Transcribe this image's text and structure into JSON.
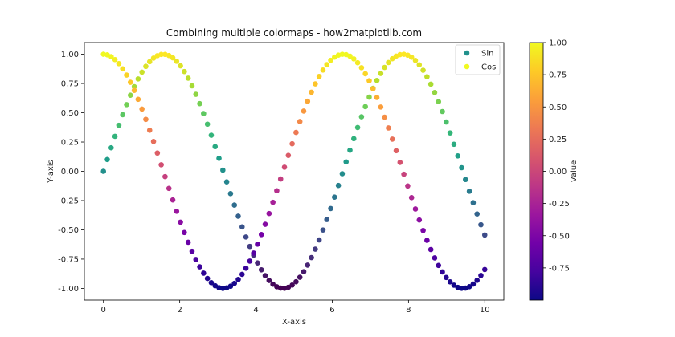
{
  "chart_data": {
    "type": "scatter",
    "title": "Combining multiple colormaps - how2matplotlib.com",
    "xlabel": "X-axis",
    "ylabel": "Y-axis",
    "xlim": [
      -0.5,
      10.5
    ],
    "ylim": [
      -1.1,
      1.1
    ],
    "x_ticks": [
      0,
      2,
      4,
      6,
      8,
      10
    ],
    "x_tick_labels": [
      "0",
      "2",
      "4",
      "6",
      "8",
      "10"
    ],
    "y_ticks": [
      -1.0,
      -0.75,
      -0.5,
      -0.25,
      0.0,
      0.25,
      0.5,
      0.75,
      1.0
    ],
    "y_tick_labels": [
      "-1.00",
      "-0.75",
      "-0.50",
      "-0.25",
      "0.00",
      "0.25",
      "0.50",
      "0.75",
      "1.00"
    ],
    "x_start": 0,
    "x_end": 10,
    "point_count": 100,
    "series": [
      {
        "name": "Sin",
        "function": "sin",
        "colormap": "viridis",
        "legend_color": "#21918c"
      },
      {
        "name": "Cos",
        "function": "cos",
        "colormap": "plasma",
        "legend_color": "#f0f921"
      }
    ],
    "legend_position": "upper right",
    "colorbar": {
      "label": "Value",
      "colormap": "plasma",
      "range": [
        -1.0,
        1.0
      ],
      "ticks": [
        -0.75,
        -0.5,
        -0.25,
        0.0,
        0.25,
        0.5,
        0.75,
        1.0
      ],
      "tick_labels": [
        "-0.75",
        "-0.50",
        "-0.25",
        "0.00",
        "0.25",
        "0.50",
        "0.75",
        "1.00"
      ]
    },
    "grid": false
  }
}
